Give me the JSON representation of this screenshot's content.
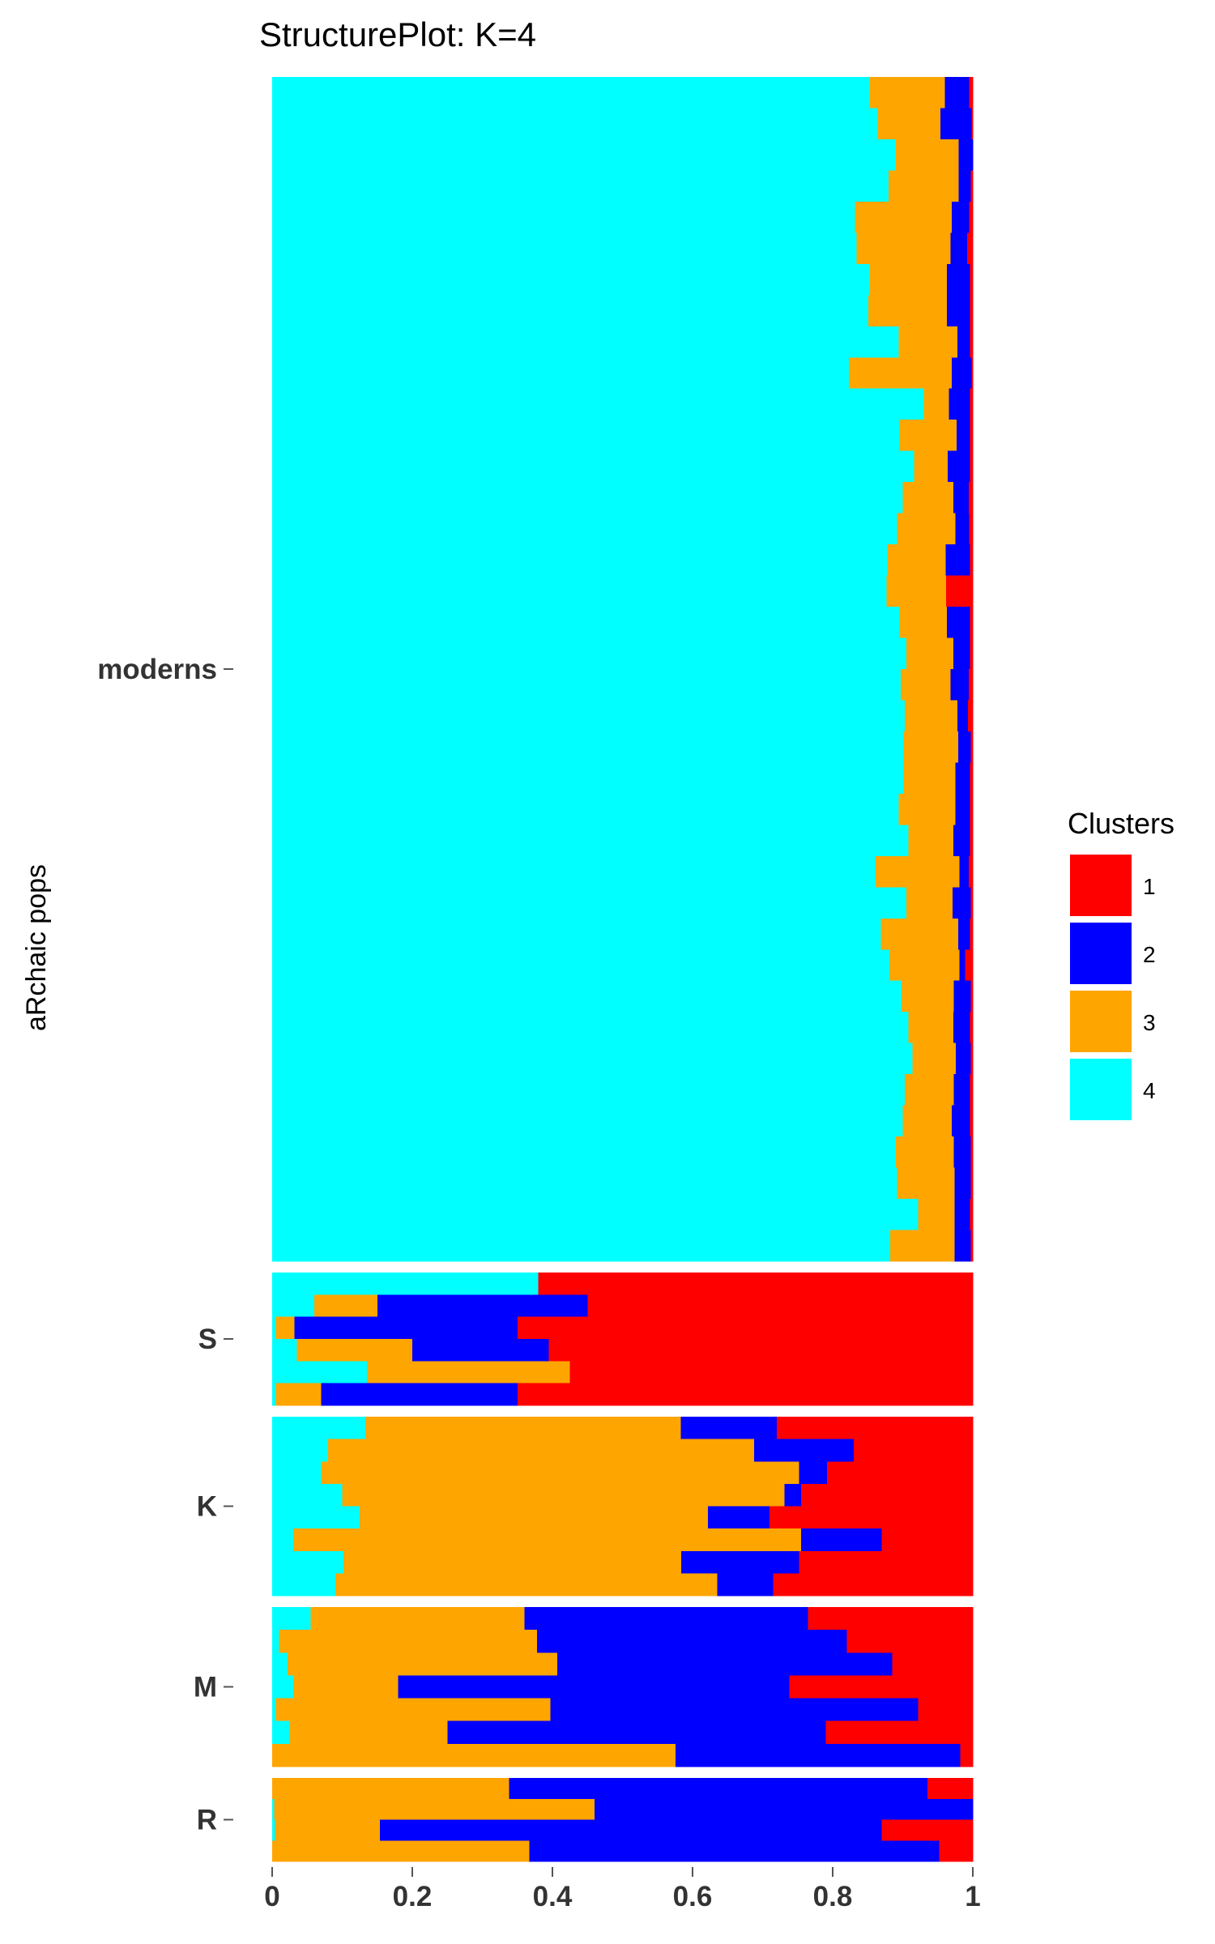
{
  "chart_data": {
    "type": "bar",
    "orientation": "horizontal",
    "stacked": true,
    "title": "StructurePlot: K=4",
    "ylabel": "aRchaic pops",
    "xlabel": "",
    "xlim": [
      0,
      1
    ],
    "x_ticks": [
      0,
      0.2,
      0.4,
      0.6,
      0.8,
      1
    ],
    "x_tick_labels": [
      "0",
      "0.2",
      "0.4",
      "0.6",
      "0.8",
      "1"
    ],
    "grid": false,
    "legend": {
      "title": "Clusters",
      "position": "right",
      "entries": [
        "1",
        "2",
        "3",
        "4"
      ]
    },
    "clusters": [
      {
        "name": "1",
        "color": "#ff0000"
      },
      {
        "name": "2",
        "color": "#0000ff"
      },
      {
        "name": "3",
        "color": "#ffa500"
      },
      {
        "name": "4",
        "color": "#00ffff"
      }
    ],
    "segment_order": [
      "4",
      "3",
      "2",
      "1"
    ],
    "groups": [
      {
        "label": "moderns",
        "rows": [
          [
            0.005,
            0.035,
            0.107,
            0.853
          ],
          [
            0.002,
            0.044,
            0.09,
            0.864
          ],
          [
            0.0,
            0.02,
            0.09,
            0.89
          ],
          [
            0.003,
            0.017,
            0.1,
            0.88
          ],
          [
            0.005,
            0.025,
            0.138,
            0.832
          ],
          [
            0.008,
            0.024,
            0.134,
            0.834
          ],
          [
            0.004,
            0.033,
            0.11,
            0.853
          ],
          [
            0.004,
            0.033,
            0.112,
            0.851
          ],
          [
            0.004,
            0.018,
            0.084,
            0.894
          ],
          [
            0.002,
            0.028,
            0.147,
            0.823
          ],
          [
            0.004,
            0.03,
            0.036,
            0.93
          ],
          [
            0.004,
            0.019,
            0.082,
            0.895
          ],
          [
            0.004,
            0.032,
            0.048,
            0.916
          ],
          [
            0.006,
            0.022,
            0.072,
            0.9
          ],
          [
            0.005,
            0.02,
            0.083,
            0.892
          ],
          [
            0.004,
            0.035,
            0.083,
            0.878
          ],
          [
            0.038,
            0.0,
            0.085,
            0.877
          ],
          [
            0.004,
            0.033,
            0.068,
            0.895
          ],
          [
            0.004,
            0.024,
            0.067,
            0.905
          ],
          [
            0.006,
            0.026,
            0.071,
            0.897
          ],
          [
            0.007,
            0.015,
            0.075,
            0.903
          ],
          [
            0.003,
            0.018,
            0.078,
            0.901
          ],
          [
            0.004,
            0.021,
            0.074,
            0.901
          ],
          [
            0.004,
            0.021,
            0.081,
            0.894
          ],
          [
            0.004,
            0.024,
            0.064,
            0.908
          ],
          [
            0.006,
            0.013,
            0.12,
            0.861
          ],
          [
            0.003,
            0.026,
            0.066,
            0.905
          ],
          [
            0.004,
            0.017,
            0.11,
            0.869
          ],
          [
            0.011,
            0.008,
            0.1,
            0.881
          ],
          [
            0.003,
            0.024,
            0.075,
            0.898
          ],
          [
            0.004,
            0.024,
            0.064,
            0.908
          ],
          [
            0.003,
            0.021,
            0.062,
            0.914
          ],
          [
            0.004,
            0.023,
            0.07,
            0.903
          ],
          [
            0.004,
            0.026,
            0.07,
            0.9
          ],
          [
            0.003,
            0.024,
            0.083,
            0.89
          ],
          [
            0.003,
            0.023,
            0.082,
            0.892
          ],
          [
            0.004,
            0.022,
            0.052,
            0.922
          ],
          [
            0.003,
            0.023,
            0.092,
            0.882
          ]
        ]
      },
      {
        "label": "S",
        "rows": [
          [
            0.62,
            0.0,
            0.0,
            0.38
          ],
          [
            0.55,
            0.3,
            0.09,
            0.06
          ],
          [
            0.65,
            0.318,
            0.027,
            0.005
          ],
          [
            0.605,
            0.195,
            0.165,
            0.035
          ],
          [
            0.575,
            0.0,
            0.29,
            0.135
          ],
          [
            0.65,
            0.28,
            0.065,
            0.005
          ]
        ]
      },
      {
        "label": "K",
        "rows": [
          [
            0.28,
            0.137,
            0.45,
            0.133
          ],
          [
            0.17,
            0.142,
            0.608,
            0.08
          ],
          [
            0.208,
            0.04,
            0.682,
            0.07
          ],
          [
            0.245,
            0.024,
            0.631,
            0.1
          ],
          [
            0.29,
            0.088,
            0.497,
            0.125
          ],
          [
            0.13,
            0.115,
            0.725,
            0.03
          ],
          [
            0.248,
            0.168,
            0.482,
            0.102
          ],
          [
            0.285,
            0.08,
            0.545,
            0.09
          ]
        ]
      },
      {
        "label": "M",
        "rows": [
          [
            0.235,
            0.405,
            0.305,
            0.055
          ],
          [
            0.18,
            0.442,
            0.368,
            0.01
          ],
          [
            0.115,
            0.478,
            0.385,
            0.022
          ],
          [
            0.262,
            0.558,
            0.15,
            0.03
          ],
          [
            0.078,
            0.525,
            0.392,
            0.005
          ],
          [
            0.21,
            0.54,
            0.225,
            0.025
          ],
          [
            0.018,
            0.406,
            0.576,
            0.0
          ]
        ]
      },
      {
        "label": "R",
        "rows": [
          [
            0.065,
            0.597,
            0.338,
            0.0
          ],
          [
            0.0,
            0.54,
            0.457,
            0.003
          ],
          [
            0.13,
            0.716,
            0.15,
            0.004
          ],
          [
            0.048,
            0.585,
            0.367,
            0.0
          ]
        ]
      }
    ]
  }
}
